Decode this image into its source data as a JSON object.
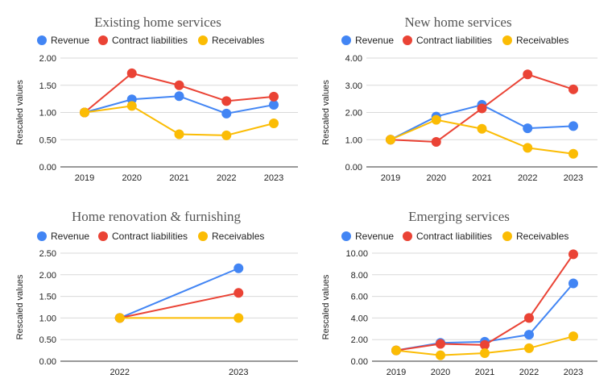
{
  "page": {
    "background": "#ffffff"
  },
  "colors": {
    "Revenue": "#4285f4",
    "Contract liabilities": "#ea4335",
    "Receivables": "#fbbc04",
    "grid": "#d9d9d9",
    "axis": "#333333"
  },
  "chart_data": [
    {
      "type": "line",
      "title": "Existing home services",
      "ylabel": "Rescaled values",
      "categories": [
        "2019",
        "2020",
        "2021",
        "2022",
        "2023"
      ],
      "ylim": [
        0,
        2
      ],
      "yticks": [
        "0.00",
        "0.50",
        "1.00",
        "1.50",
        "2.00"
      ],
      "grid": true,
      "legend": "top",
      "series": [
        {
          "name": "Revenue",
          "values": [
            1.0,
            1.24,
            1.3,
            0.98,
            1.14
          ]
        },
        {
          "name": "Contract liabilities",
          "values": [
            1.0,
            1.72,
            1.5,
            1.21,
            1.29
          ]
        },
        {
          "name": "Receivables",
          "values": [
            1.0,
            1.12,
            0.6,
            0.58,
            0.8
          ]
        }
      ]
    },
    {
      "type": "line",
      "title": "New home services",
      "ylabel": "Rescaled values",
      "categories": [
        "2019",
        "2020",
        "2021",
        "2022",
        "2023"
      ],
      "ylim": [
        0,
        4
      ],
      "yticks": [
        "0.00",
        "1.00",
        "2.00",
        "3.00",
        "4.00"
      ],
      "grid": true,
      "legend": "top",
      "series": [
        {
          "name": "Revenue",
          "values": [
            1.0,
            1.85,
            2.28,
            1.42,
            1.5
          ]
        },
        {
          "name": "Contract liabilities",
          "values": [
            1.0,
            0.92,
            2.15,
            3.4,
            2.85
          ]
        },
        {
          "name": "Receivables",
          "values": [
            1.0,
            1.73,
            1.4,
            0.7,
            0.48
          ]
        }
      ]
    },
    {
      "type": "line",
      "title": "Home renovation & furnishing",
      "ylabel": "Rescaled values",
      "categories": [
        "2022",
        "2023"
      ],
      "ylim": [
        0,
        2.5
      ],
      "yticks": [
        "0.00",
        "0.50",
        "1.00",
        "1.50",
        "2.00",
        "2.50"
      ],
      "grid": true,
      "legend": "top",
      "series": [
        {
          "name": "Revenue",
          "values": [
            1.0,
            2.15
          ]
        },
        {
          "name": "Contract liabilities",
          "values": [
            1.0,
            1.58
          ]
        },
        {
          "name": "Receivables",
          "values": [
            1.0,
            1.0
          ]
        }
      ]
    },
    {
      "type": "line",
      "title": "Emerging services",
      "ylabel": "Rescaled values",
      "categories": [
        "2019",
        "2020",
        "2021",
        "2022",
        "2023"
      ],
      "ylim": [
        0,
        10
      ],
      "yticks": [
        "0.00",
        "2.00",
        "4.00",
        "6.00",
        "8.00",
        "10.00"
      ],
      "grid": true,
      "legend": "top",
      "series": [
        {
          "name": "Revenue",
          "values": [
            1.0,
            1.7,
            1.8,
            2.45,
            7.2
          ]
        },
        {
          "name": "Contract liabilities",
          "values": [
            1.0,
            1.6,
            1.5,
            4.0,
            9.9
          ]
        },
        {
          "name": "Receivables",
          "values": [
            1.0,
            0.55,
            0.75,
            1.2,
            2.3
          ]
        }
      ]
    }
  ]
}
